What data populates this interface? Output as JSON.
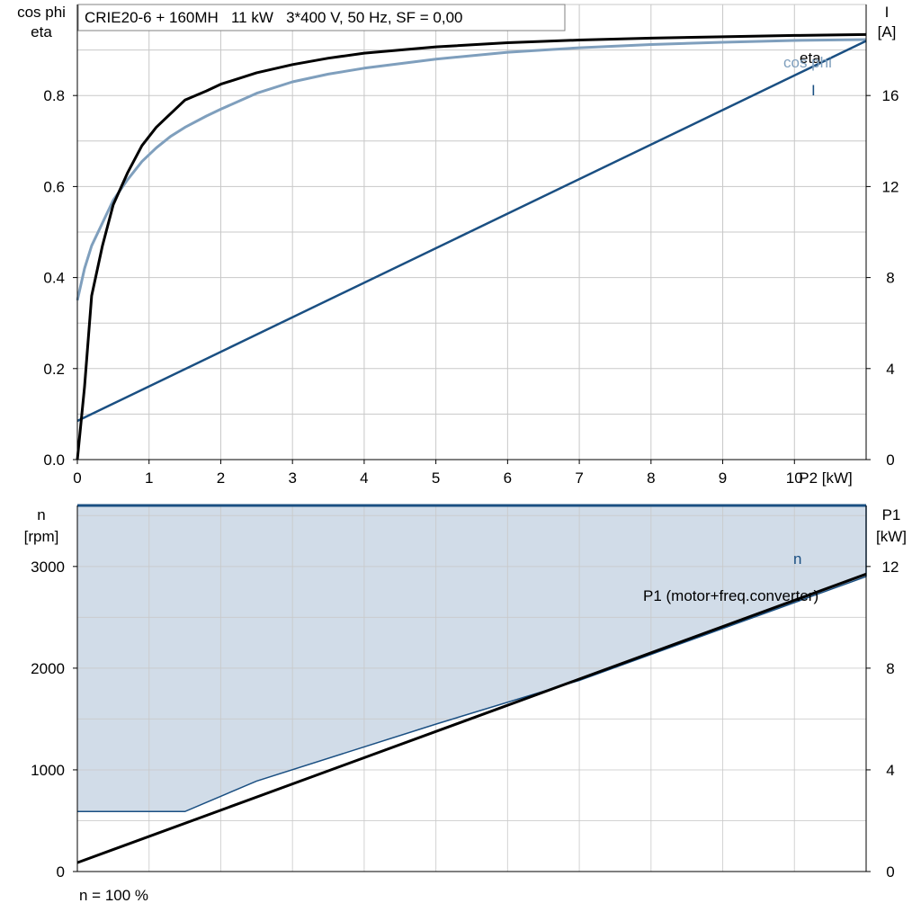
{
  "title_box": "CRIE20-6 + 160MH   11 kW   3*400 V, 50 Hz, SF = 0,00",
  "footer_note": "n = 100 %",
  "colors": {
    "eta": "#000000",
    "cos_phi": "#7f9fbd",
    "I": "#1a4f82",
    "n": "#1a4f82",
    "P1": "#000000",
    "fill": "#d1dce8",
    "grid": "#c8c8c8"
  },
  "chart_data": [
    {
      "type": "line",
      "x_axis": {
        "label": "P2 [kW]",
        "range": [
          0,
          11
        ],
        "ticks": [
          "0",
          "1",
          "2",
          "3",
          "4",
          "5",
          "6",
          "7",
          "8",
          "9",
          "10"
        ]
      },
      "y_left": {
        "label_lines": [
          "cos phi",
          "eta"
        ],
        "range": [
          0,
          1.0
        ],
        "ticks": [
          "0.0",
          "0.2",
          "0.4",
          "0.6",
          "0.8"
        ],
        "tick_values": [
          0,
          0.2,
          0.4,
          0.6,
          0.8
        ]
      },
      "y_right": {
        "label_lines": [
          "I",
          "[A]"
        ],
        "range": [
          0,
          20
        ],
        "ticks": [
          "0",
          "4",
          "8",
          "12",
          "16"
        ],
        "tick_values": [
          0,
          4,
          8,
          12,
          16
        ]
      },
      "grid": true,
      "series": [
        {
          "name": "eta",
          "axis": "left",
          "x": [
            0,
            0.1,
            0.2,
            0.35,
            0.5,
            0.7,
            0.9,
            1.1,
            1.3,
            1.5,
            1.8,
            2.0,
            2.5,
            3.0,
            3.5,
            4.0,
            5.0,
            6.0,
            7.0,
            8.0,
            9.0,
            10.0,
            11.0
          ],
          "y": [
            0.0,
            0.16,
            0.36,
            0.47,
            0.56,
            0.63,
            0.69,
            0.73,
            0.76,
            0.79,
            0.81,
            0.825,
            0.85,
            0.868,
            0.882,
            0.893,
            0.907,
            0.916,
            0.922,
            0.926,
            0.929,
            0.932,
            0.934
          ]
        },
        {
          "name": "cos phi",
          "axis": "left",
          "x": [
            0,
            0.1,
            0.2,
            0.35,
            0.5,
            0.7,
            0.9,
            1.1,
            1.3,
            1.5,
            1.8,
            2.0,
            2.5,
            3.0,
            3.5,
            4.0,
            5.0,
            6.0,
            7.0,
            8.0,
            9.0,
            10.0,
            11.0
          ],
          "y": [
            0.35,
            0.42,
            0.47,
            0.52,
            0.57,
            0.615,
            0.655,
            0.685,
            0.71,
            0.73,
            0.755,
            0.77,
            0.805,
            0.83,
            0.847,
            0.86,
            0.88,
            0.895,
            0.905,
            0.912,
            0.917,
            0.921,
            0.923
          ]
        },
        {
          "name": "I",
          "axis": "right",
          "x": [
            0,
            11
          ],
          "y": [
            1.7,
            18.4
          ]
        }
      ],
      "labels": {
        "eta": "eta",
        "cos_phi": "cos phi",
        "I": "I"
      }
    },
    {
      "type": "area",
      "x_axis": {
        "range": [
          0,
          11
        ]
      },
      "y_left": {
        "label_lines": [
          "n",
          "[rpm]"
        ],
        "range": [
          0,
          3600
        ],
        "ticks": [
          "0",
          "1000",
          "2000",
          "3000"
        ],
        "tick_values": [
          0,
          1000,
          2000,
          3000
        ]
      },
      "y_right": {
        "label_lines": [
          "P1",
          "[kW]"
        ],
        "range": [
          0,
          14.4
        ],
        "ticks": [
          "0",
          "4",
          "8",
          "12"
        ],
        "tick_values": [
          0,
          4,
          8,
          12
        ]
      },
      "grid": true,
      "series": [
        {
          "name": "n",
          "axis": "left",
          "x": [
            0,
            11
          ],
          "y": [
            3600,
            3600
          ]
        },
        {
          "name": "n_min_boundary",
          "axis": "left",
          "x": [
            0,
            1.5,
            2.5,
            5.0,
            7.0,
            11.0
          ],
          "y": [
            590,
            590,
            890,
            1450,
            1880,
            2900
          ]
        },
        {
          "name": "P1 (motor+freq.converter)",
          "axis": "right",
          "x": [
            0,
            11
          ],
          "y": [
            0.35,
            11.7
          ]
        }
      ],
      "labels": {
        "n": "n",
        "P1": "P1 (motor+freq.converter)"
      }
    }
  ]
}
